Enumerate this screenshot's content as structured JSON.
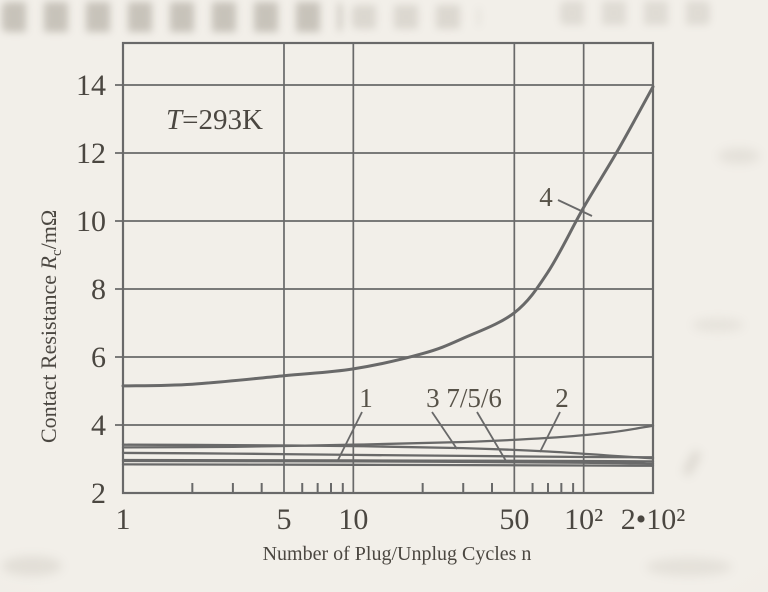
{
  "colors": {
    "page_background": "#f0ede8",
    "plot_line": "#696969",
    "label_text": "#4b4741"
  },
  "chart_data": {
    "type": "line",
    "x_scale": "log",
    "xlabel": "Number of Plug/Unplug Cycles n",
    "ylabel": "Contact Resistance Rc/mΩ",
    "annotation": "T=293K",
    "xlim": [
      1,
      200
    ],
    "ylim": [
      2,
      15.2
    ],
    "grid": "on",
    "legend": "none",
    "xticks": [
      {
        "label": "1",
        "value": 1
      },
      {
        "label": "5",
        "value": 5
      },
      {
        "label": "10",
        "value": 10
      },
      {
        "label": "50",
        "value": 50
      },
      {
        "label": "10²",
        "value": 100
      },
      {
        "label": "2•10²",
        "value": 200
      }
    ],
    "yticks": [
      {
        "label": "14",
        "value": 14
      },
      {
        "label": "12",
        "value": 12
      },
      {
        "label": "10",
        "value": 10
      },
      {
        "label": "8",
        "value": 8
      },
      {
        "label": "6",
        "value": 6
      },
      {
        "label": "4",
        "value": 4
      },
      {
        "label": "2",
        "value": 2
      }
    ],
    "x_gridlines": [
      5,
      10,
      50,
      100
    ],
    "y_gridlines": [
      4,
      6,
      8,
      10,
      12,
      14
    ],
    "x_minor_ticks": [
      2,
      3,
      4,
      6,
      7,
      8,
      9,
      20,
      30,
      40,
      60,
      70,
      80,
      90
    ],
    "series": [
      {
        "name": "1",
        "points": [
          [
            1,
            3.18
          ],
          [
            3,
            3.16
          ],
          [
            10,
            3.12
          ],
          [
            30,
            3.09
          ],
          [
            100,
            3.06
          ],
          [
            200,
            3.05
          ]
        ]
      },
      {
        "name": "2",
        "points": [
          [
            1,
            3.34
          ],
          [
            3,
            3.36
          ],
          [
            10,
            3.42
          ],
          [
            30,
            3.5
          ],
          [
            70,
            3.62
          ],
          [
            130,
            3.78
          ],
          [
            200,
            3.98
          ]
        ]
      },
      {
        "name": "3",
        "points": [
          [
            1,
            3.42
          ],
          [
            3,
            3.41
          ],
          [
            10,
            3.38
          ],
          [
            30,
            3.32
          ],
          [
            70,
            3.22
          ],
          [
            130,
            3.1
          ],
          [
            200,
            3.02
          ]
        ]
      },
      {
        "name": "4",
        "points": [
          [
            1,
            5.15
          ],
          [
            2,
            5.2
          ],
          [
            5,
            5.45
          ],
          [
            10,
            5.65
          ],
          [
            20,
            6.1
          ],
          [
            30,
            6.55
          ],
          [
            50,
            7.3
          ],
          [
            70,
            8.5
          ],
          [
            100,
            10.4
          ],
          [
            140,
            12.05
          ],
          [
            200,
            13.95
          ]
        ]
      },
      {
        "name": "5",
        "points": [
          [
            1,
            2.97
          ],
          [
            10,
            2.96
          ],
          [
            100,
            2.94
          ],
          [
            200,
            2.93
          ]
        ]
      },
      {
        "name": "6",
        "points": [
          [
            1,
            2.94
          ],
          [
            10,
            2.93
          ],
          [
            100,
            2.89
          ],
          [
            200,
            2.86
          ]
        ]
      },
      {
        "name": "7",
        "points": [
          [
            1,
            2.84
          ],
          [
            10,
            2.83
          ],
          [
            100,
            2.81
          ],
          [
            200,
            2.8
          ]
        ]
      }
    ],
    "curve_labels": {
      "c1": "1",
      "c2": "2",
      "c3756": "3 7/5/6",
      "c4": "4"
    }
  },
  "labels": {
    "ylabel_prefix": "Contact Resistance ",
    "ylabel_symbol": "R",
    "ylabel_subscript": "c",
    "ylabel_suffix": "/mΩ",
    "note_symbol": "T",
    "note_rest": "=293K"
  }
}
